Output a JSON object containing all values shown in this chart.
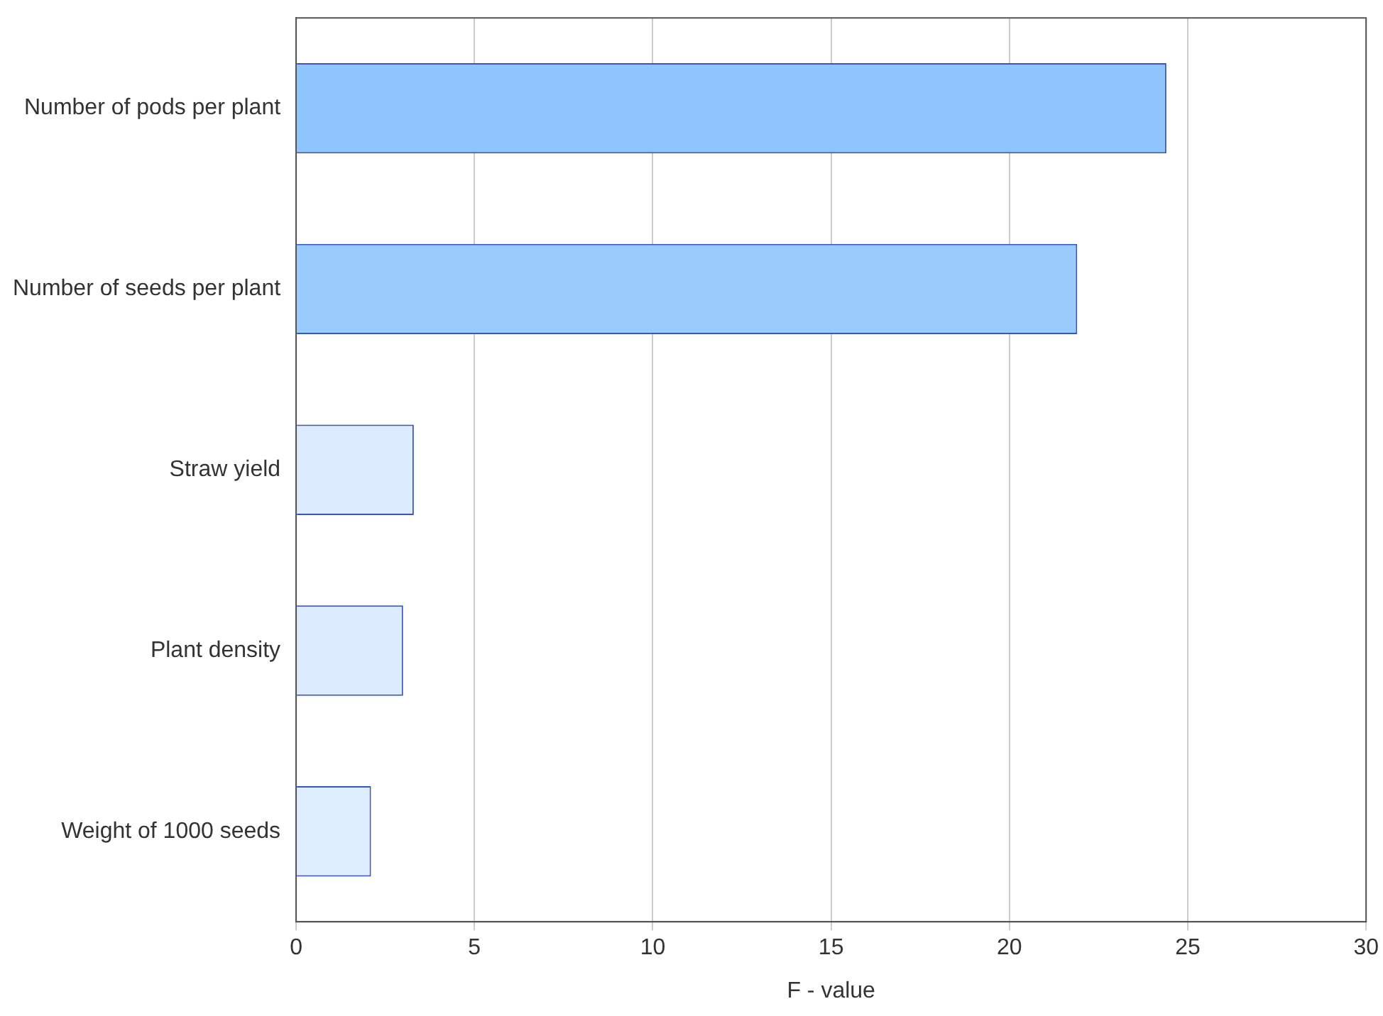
{
  "chart_data": {
    "type": "bar",
    "orientation": "horizontal",
    "xlabel": "F - value",
    "categories": [
      "Number of pods per plant",
      "Number of seeds per plant",
      "Straw yield",
      "Plant density",
      "Weight of 1000 seeds"
    ],
    "values": [
      24.4,
      21.9,
      3.3,
      3.0,
      2.1
    ],
    "colors": [
      "#8fc5fd",
      "#9acbfd",
      "#dcebfd",
      "#dcebfd",
      "#deedfd"
    ],
    "xlim": [
      0,
      30
    ],
    "xticks": [
      0,
      5,
      10,
      15,
      20,
      25,
      30
    ],
    "grid": "x",
    "legend": false
  }
}
